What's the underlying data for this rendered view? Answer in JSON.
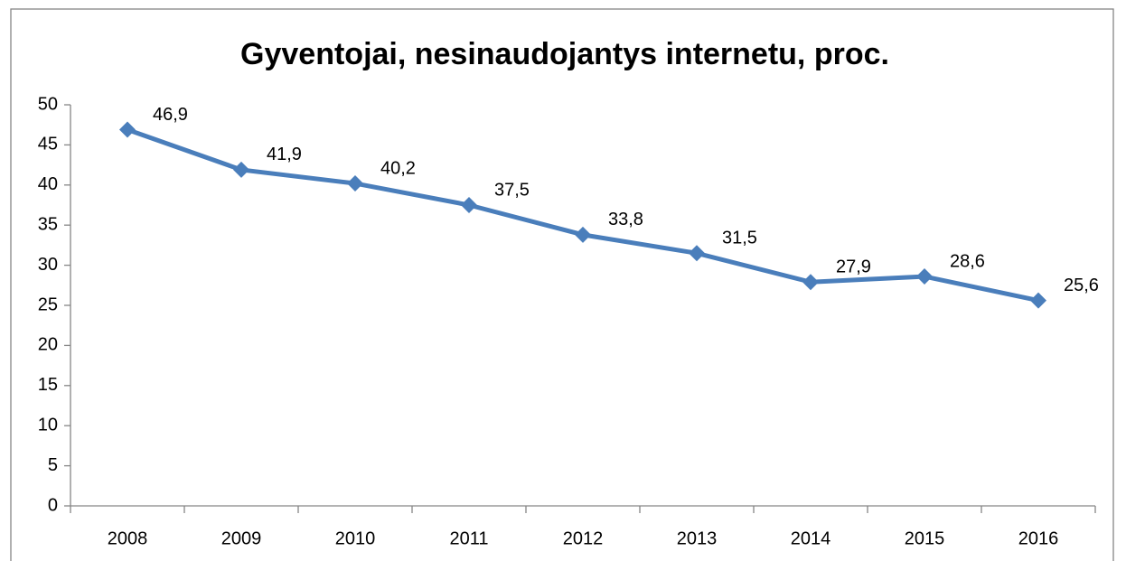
{
  "chart_data": {
    "type": "line",
    "title": "Gyventojai, nesinaudojantys internetu, proc.",
    "categories": [
      "2008",
      "2009",
      "2010",
      "2011",
      "2012",
      "2013",
      "2014",
      "2015",
      "2016"
    ],
    "values": [
      46.9,
      41.9,
      40.2,
      37.5,
      33.8,
      31.5,
      27.9,
      28.6,
      25.6
    ],
    "value_labels": [
      "46,9",
      "41,9",
      "40,2",
      "37,5",
      "33,8",
      "31,5",
      "27,9",
      "28,6",
      "25,6"
    ],
    "color": "#4a7ebb",
    "ylim": [
      0,
      50
    ],
    "yticks": [
      0,
      5,
      10,
      15,
      20,
      25,
      30,
      35,
      40,
      45,
      50
    ],
    "grid": false
  }
}
